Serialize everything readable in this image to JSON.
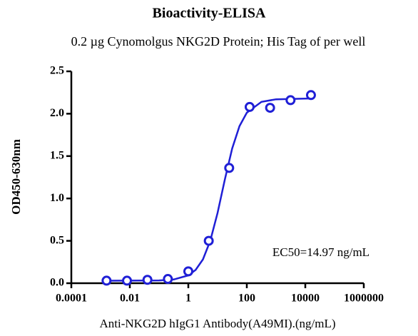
{
  "chart_data": {
    "type": "scatter",
    "title": "Bioactivity-ELISA",
    "subtitle": "0.2 µg Cynomolgus NKG2D Protein; His Tag of per well",
    "x_label": "Anti-NKG2D hIgG1 Antibody(A49MI).(ng/mL)",
    "y_label": "OD450-630nm",
    "annotation": "EC50=14.97 ng/mL",
    "x_scale": "log",
    "color": "#1f1fd6",
    "xlim": [
      0.0001,
      1000000
    ],
    "xticks": [
      0.0001,
      0.01,
      1,
      100,
      10000,
      1000000
    ],
    "ylim": [
      0,
      2.5
    ],
    "yticks": [
      {
        "value": 0,
        "label": "0.0"
      },
      0.5,
      {
        "value": 1,
        "label": "1.0"
      },
      1.5,
      {
        "value": 2,
        "label": "2.0"
      },
      2.5
    ],
    "series": [
      {
        "x": [
          0.0016,
          0.008,
          0.04,
          0.2,
          1,
          5,
          25,
          125,
          625,
          3125,
          15625
        ],
        "values": [
          0.03,
          0.03,
          0.04,
          0.05,
          0.14,
          0.5,
          1.36,
          2.08,
          2.07,
          2.16,
          2.22
        ]
      },
      {
        "x": [
          0.0016,
          0.1,
          0.316,
          1,
          1.778,
          3.162,
          5.623,
          10,
          17.78,
          31.62,
          56.23,
          100,
          316.2,
          1000,
          15849
        ],
        "values": [
          0.03,
          0.033,
          0.044,
          0.092,
          0.157,
          0.281,
          0.5,
          0.829,
          1.225,
          1.59,
          1.854,
          2.012,
          2.14,
          2.17,
          2.18
        ]
      }
    ]
  }
}
